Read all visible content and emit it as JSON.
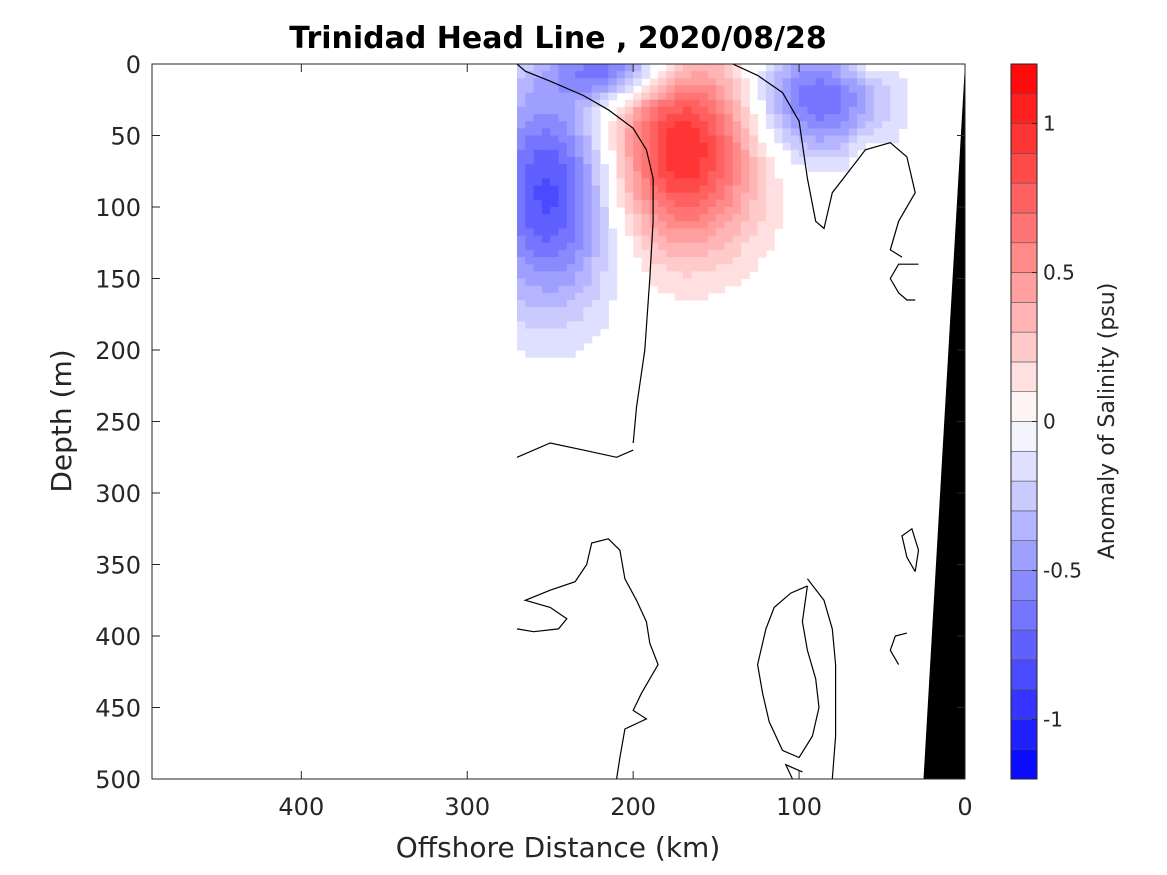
{
  "chart_data": {
    "type": "heatmap",
    "title": "Trinidad Head Line , 2020/08/28",
    "xlabel": "Offshore Distance (km)",
    "ylabel": "Depth (m)",
    "colorbar_label": "Anomaly of Salinity (psu)",
    "xlim": [
      490,
      0
    ],
    "ylim": [
      500,
      0
    ],
    "xticks": [
      400,
      300,
      200,
      100,
      0
    ],
    "xtick_labels": [
      "400",
      "300",
      "200",
      "100",
      "0"
    ],
    "yticks": [
      0,
      50,
      100,
      150,
      200,
      250,
      300,
      350,
      400,
      450,
      500
    ],
    "ytick_labels": [
      "0",
      "50",
      "100",
      "150",
      "200",
      "250",
      "300",
      "350",
      "400",
      "450",
      "500"
    ],
    "colorbar_range": [
      -1.2,
      1.2
    ],
    "colorbar_ticks": [
      -1,
      -0.5,
      0,
      0.5,
      1
    ],
    "colorbar_tick_labels": [
      "-1",
      "-0.5",
      "0",
      "0.5",
      "1"
    ],
    "colorbar_levels": 24,
    "colors": {
      "negative": "#0000ff",
      "positive": "#ff0000",
      "zero": "#ffffff",
      "bathymetry": "#000000"
    },
    "features": [
      {
        "name": "high-salinity core",
        "x": 170,
        "y": 60,
        "anomaly": 1.0,
        "rx": 45,
        "ry": 70
      },
      {
        "name": "offshore low-salinity core",
        "x": 250,
        "y": 90,
        "anomaly": -0.85,
        "rx": 40,
        "ry": 80
      },
      {
        "name": "near-surface low",
        "x": 210,
        "y": 5,
        "anomaly": -0.7,
        "rx": 35,
        "ry": 20
      },
      {
        "name": "shelf-break low",
        "x": 90,
        "y": 25,
        "anomaly": -0.7,
        "rx": 40,
        "ry": 40
      },
      {
        "name": "surface high",
        "x": 60,
        "y": 3,
        "anomaly": 0.2,
        "rx": 15,
        "ry": 8
      },
      {
        "name": "subsurface high",
        "x": 60,
        "y": 65,
        "anomaly": 0.15,
        "rx": 10,
        "ry": 15
      }
    ],
    "zero_contours": [
      [
        [
          270,
          0
        ],
        [
          265,
          5
        ],
        [
          250,
          12
        ],
        [
          230,
          22
        ],
        [
          215,
          32
        ],
        [
          200,
          45
        ],
        [
          192,
          60
        ],
        [
          188,
          80
        ],
        [
          188,
          110
        ],
        [
          190,
          150
        ],
        [
          193,
          200
        ],
        [
          198,
          240
        ],
        [
          200,
          265
        ]
      ],
      [
        [
          140,
          0
        ],
        [
          125,
          8
        ],
        [
          110,
          20
        ],
        [
          100,
          40
        ],
        [
          95,
          80
        ],
        [
          90,
          110
        ],
        [
          85,
          115
        ],
        [
          80,
          90
        ],
        [
          70,
          75
        ],
        [
          60,
          60
        ],
        [
          45,
          55
        ],
        [
          35,
          65
        ],
        [
          30,
          90
        ],
        [
          40,
          110
        ],
        [
          45,
          130
        ],
        [
          38,
          135
        ]
      ],
      [
        [
          28,
          140
        ],
        [
          40,
          140
        ],
        [
          45,
          150
        ],
        [
          40,
          160
        ],
        [
          35,
          165
        ],
        [
          30,
          165
        ]
      ],
      [
        [
          270,
          275
        ],
        [
          250,
          265
        ],
        [
          230,
          270
        ],
        [
          210,
          275
        ],
        [
          200,
          270
        ]
      ],
      [
        [
          270,
          395
        ],
        [
          260,
          397
        ],
        [
          245,
          395
        ],
        [
          240,
          388
        ],
        [
          250,
          380
        ],
        [
          265,
          375
        ],
        [
          250,
          368
        ],
        [
          235,
          362
        ],
        [
          228,
          350
        ],
        [
          225,
          335
        ],
        [
          215,
          332
        ],
        [
          208,
          340
        ],
        [
          205,
          360
        ],
        [
          198,
          375
        ],
        [
          192,
          390
        ],
        [
          190,
          405
        ],
        [
          185,
          420
        ],
        [
          195,
          440
        ],
        [
          200,
          452
        ],
        [
          192,
          458
        ],
        [
          205,
          465
        ],
        [
          208,
          485
        ],
        [
          210,
          500
        ]
      ],
      [
        [
          95,
          360
        ],
        [
          85,
          375
        ],
        [
          80,
          395
        ],
        [
          78,
          420
        ],
        [
          78,
          470
        ],
        [
          80,
          500
        ]
      ],
      [
        [
          95,
          365
        ],
        [
          105,
          370
        ],
        [
          115,
          380
        ],
        [
          120,
          395
        ],
        [
          125,
          420
        ],
        [
          122,
          440
        ],
        [
          118,
          460
        ],
        [
          110,
          480
        ],
        [
          100,
          485
        ],
        [
          92,
          470
        ],
        [
          88,
          450
        ],
        [
          90,
          430
        ],
        [
          95,
          410
        ],
        [
          98,
          390
        ],
        [
          95,
          365
        ]
      ],
      [
        [
          98,
          495
        ],
        [
          108,
          490
        ],
        [
          102,
          505
        ]
      ],
      [
        [
          30,
          355
        ],
        [
          28,
          340
        ],
        [
          32,
          325
        ],
        [
          38,
          330
        ],
        [
          35,
          345
        ],
        [
          30,
          355
        ]
      ],
      [
        [
          40,
          420
        ],
        [
          45,
          410
        ],
        [
          42,
          400
        ],
        [
          35,
          398
        ]
      ]
    ],
    "bathymetry": [
      [
        0,
        0
      ],
      [
        25,
        500
      ],
      [
        0,
        500
      ]
    ]
  }
}
